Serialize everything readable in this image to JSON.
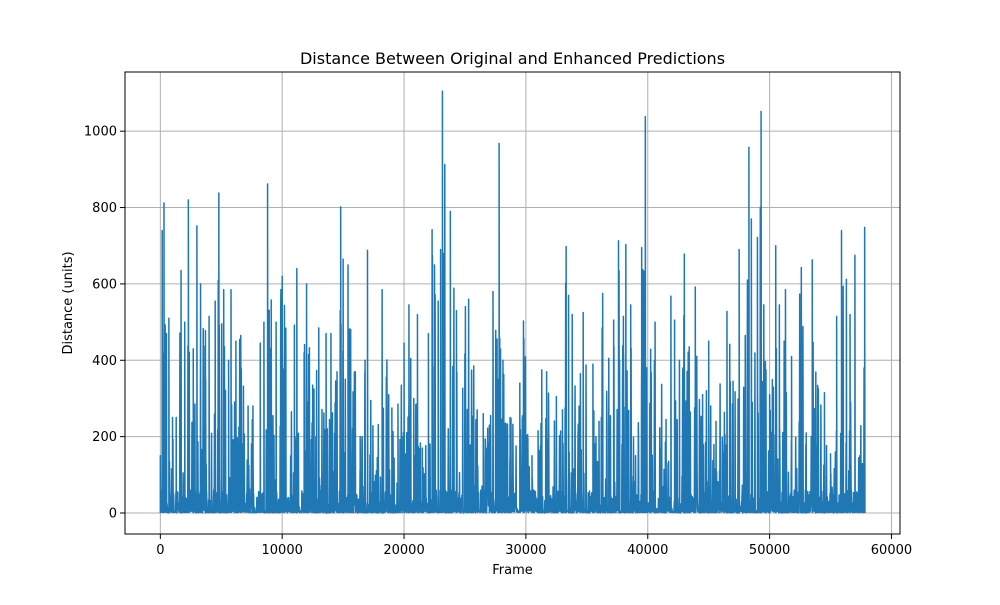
{
  "chart_data": {
    "type": "line",
    "title": "Distance Between Original and Enhanced Predictions",
    "xlabel": "Frame",
    "ylabel": "Distance (units)",
    "xlim": [
      -2900,
      60700
    ],
    "ylim": [
      -55,
      1155
    ],
    "grid": true,
    "legend": "none",
    "x_ticks": [
      0,
      10000,
      20000,
      30000,
      40000,
      50000,
      60000
    ],
    "y_ticks": [
      0,
      200,
      400,
      600,
      800,
      1000
    ],
    "series": [
      {
        "color": "#1f77b4",
        "peaks": [
          [
            0,
            150
          ],
          [
            150,
            740
          ],
          [
            300,
            812
          ],
          [
            500,
            470
          ],
          [
            700,
            510
          ],
          [
            1000,
            250
          ],
          [
            1300,
            250
          ],
          [
            1700,
            635
          ],
          [
            2000,
            500
          ],
          [
            2300,
            820
          ],
          [
            2700,
            430
          ],
          [
            3000,
            752
          ],
          [
            3300,
            600
          ],
          [
            3700,
            478
          ],
          [
            4000,
            515
          ],
          [
            4500,
            555
          ],
          [
            4800,
            838
          ],
          [
            5200,
            585
          ],
          [
            5600,
            400
          ],
          [
            5800,
            585
          ],
          [
            6200,
            450
          ],
          [
            6600,
            465
          ],
          [
            7200,
            280
          ],
          [
            7600,
            280
          ],
          [
            8200,
            445
          ],
          [
            8500,
            500
          ],
          [
            8800,
            862
          ],
          [
            9100,
            558
          ],
          [
            9500,
            500
          ],
          [
            10000,
            620
          ],
          [
            11000,
            492
          ],
          [
            11200,
            640
          ],
          [
            11800,
            420
          ],
          [
            12000,
            600
          ],
          [
            12500,
            335
          ],
          [
            13000,
            485
          ],
          [
            13600,
            470
          ],
          [
            14000,
            470
          ],
          [
            14500,
            370
          ],
          [
            14800,
            802
          ],
          [
            15000,
            665
          ],
          [
            15400,
            650
          ],
          [
            16000,
            370
          ],
          [
            16400,
            200
          ],
          [
            16800,
            400
          ],
          [
            17000,
            688
          ],
          [
            17800,
            145
          ],
          [
            18200,
            585
          ],
          [
            19000,
            275
          ],
          [
            19500,
            285
          ],
          [
            20000,
            445
          ],
          [
            20400,
            545
          ],
          [
            20800,
            300
          ],
          [
            21100,
            520
          ],
          [
            21500,
            170
          ],
          [
            22000,
            470
          ],
          [
            22300,
            742
          ],
          [
            22500,
            650
          ],
          [
            22800,
            555
          ],
          [
            23000,
            690
          ],
          [
            23150,
            1105
          ],
          [
            23800,
            790
          ],
          [
            24300,
            530
          ],
          [
            25300,
            560
          ],
          [
            26000,
            270
          ],
          [
            26500,
            260
          ],
          [
            27000,
            230
          ],
          [
            27300,
            580
          ],
          [
            27800,
            968
          ],
          [
            28300,
            235
          ],
          [
            28700,
            250
          ],
          [
            29500,
            340
          ],
          [
            29800,
            503
          ],
          [
            30500,
            150
          ],
          [
            31000,
            215
          ],
          [
            31300,
            375
          ],
          [
            31700,
            370
          ],
          [
            32500,
            305
          ],
          [
            33000,
            270
          ],
          [
            33300,
            698
          ],
          [
            33500,
            570
          ],
          [
            33800,
            520
          ],
          [
            34700,
            525
          ],
          [
            35500,
            390
          ],
          [
            36000,
            240
          ],
          [
            36300,
            575
          ],
          [
            36800,
            405
          ],
          [
            37200,
            505
          ],
          [
            37600,
            713
          ],
          [
            38000,
            515
          ],
          [
            38200,
            703
          ],
          [
            38600,
            545
          ],
          [
            39000,
            150
          ],
          [
            39500,
            695
          ],
          [
            39800,
            1038
          ],
          [
            40600,
            500
          ],
          [
            41500,
            245
          ],
          [
            41900,
            568
          ],
          [
            42200,
            505
          ],
          [
            42600,
            400
          ],
          [
            43000,
            678
          ],
          [
            43400,
            435
          ],
          [
            43900,
            592
          ],
          [
            44500,
            310
          ],
          [
            45000,
            450
          ],
          [
            45600,
            240
          ],
          [
            46500,
            528
          ],
          [
            47000,
            345
          ],
          [
            47500,
            690
          ],
          [
            48000,
            465
          ],
          [
            48300,
            958
          ],
          [
            48500,
            770
          ],
          [
            49000,
            722
          ],
          [
            49300,
            1052
          ],
          [
            49700,
            375
          ],
          [
            50000,
            310
          ],
          [
            50500,
            700
          ],
          [
            50800,
            545
          ],
          [
            51300,
            585
          ],
          [
            51800,
            410
          ],
          [
            52600,
            643
          ],
          [
            53000,
            210
          ],
          [
            53500,
            663
          ],
          [
            54000,
            325
          ],
          [
            54500,
            315
          ],
          [
            55000,
            155
          ],
          [
            55500,
            515
          ],
          [
            55900,
            740
          ],
          [
            56300,
            612
          ],
          [
            56600,
            520
          ],
          [
            57000,
            675
          ],
          [
            57400,
            150
          ],
          [
            57800,
            748
          ]
        ]
      }
    ]
  }
}
